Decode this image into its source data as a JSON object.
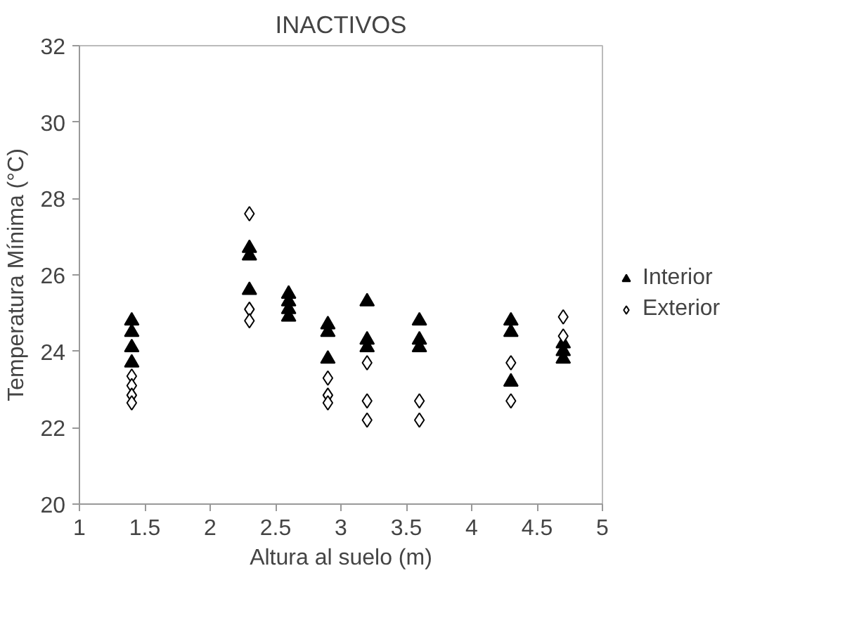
{
  "chart_data": {
    "type": "scatter",
    "title": "INACTIVOS",
    "xlabel": "Altura al suelo (m)",
    "ylabel": "Temperatura Mínima (°C)",
    "xlim": [
      1,
      5
    ],
    "xticks": [
      1,
      1.5,
      2,
      2.5,
      3,
      3.5,
      4,
      4.5,
      5
    ],
    "ylim": [
      20,
      32
    ],
    "yticks": [
      20,
      22,
      24,
      26,
      28,
      30,
      32
    ],
    "grid": false,
    "legend": "right",
    "series": [
      {
        "name": "Interior",
        "color": "#000000",
        "marker": "triangle",
        "x": [
          1.4,
          1.4,
          1.4,
          1.4,
          2.3,
          2.3,
          2.3,
          2.6,
          2.6,
          2.6,
          2.6,
          2.9,
          2.9,
          2.9,
          3.2,
          3.2,
          3.2,
          3.6,
          3.6,
          3.6,
          4.3,
          4.3,
          4.3,
          4.7,
          4.7,
          4.7
        ],
        "values": [
          24.8,
          24.5,
          24.1,
          23.7,
          26.7,
          26.5,
          25.6,
          25.5,
          25.3,
          25.1,
          24.9,
          24.7,
          24.5,
          23.8,
          25.3,
          24.3,
          24.1,
          24.8,
          24.3,
          24.1,
          24.8,
          24.5,
          23.2,
          24.2,
          24.0,
          23.8
        ]
      },
      {
        "name": "Exterior",
        "color": "#000000",
        "marker": "diamond",
        "x": [
          1.4,
          1.4,
          1.4,
          1.4,
          2.3,
          2.3,
          2.3,
          2.9,
          2.9,
          2.9,
          3.2,
          3.2,
          3.2,
          3.6,
          3.6,
          4.3,
          4.3,
          4.7,
          4.7
        ],
        "values": [
          23.35,
          23.1,
          22.85,
          22.65,
          27.6,
          25.1,
          24.8,
          23.3,
          22.85,
          22.65,
          23.7,
          22.7,
          22.2,
          22.7,
          22.2,
          23.7,
          22.7,
          24.9,
          24.4
        ]
      }
    ]
  }
}
